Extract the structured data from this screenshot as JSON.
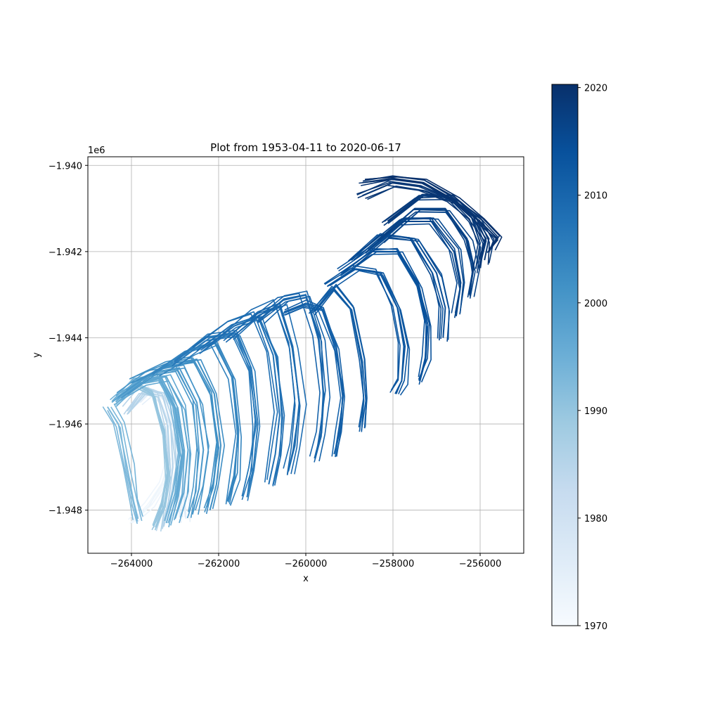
{
  "chart_data": {
    "type": "line",
    "title": "Plot from 1953-04-11 to 2020-06-17",
    "xlabel": "x",
    "ylabel": "y",
    "y_offset_label": "1e6",
    "xlim": [
      -265000,
      -255000
    ],
    "ylim": [
      -1.949,
      -1.9398
    ],
    "x_ticks": [
      -264000,
      -262000,
      -260000,
      -258000,
      -256000
    ],
    "x_tick_labels": [
      "−264000",
      "−262000",
      "−260000",
      "−258000",
      "−256000"
    ],
    "y_ticks": [
      -1.948,
      -1.946,
      -1.944,
      -1.942,
      -1.94
    ],
    "y_tick_labels": [
      "−1.948",
      "−1.946",
      "−1.944",
      "−1.942",
      "−1.940"
    ],
    "grid": true,
    "colormap": "Blues",
    "colorbar": {
      "range": [
        1970,
        2020.3
      ],
      "ticks": [
        1970,
        1980,
        1990,
        2000,
        2010,
        2020
      ],
      "tick_labels": [
        "1970",
        "1980",
        "1990",
        "2000",
        "2010",
        "2020"
      ],
      "colors": [
        "#f7fbff",
        "#deebf7",
        "#c6dbef",
        "#9ecae1",
        "#6baed6",
        "#4292c6",
        "#2171b5",
        "#08519c",
        "#08306b"
      ]
    },
    "series": [
      {
        "year": 1972,
        "x": [
          -264000,
          -263600,
          -263300,
          -263100
        ],
        "y": [
          -1.9483,
          -1.9479,
          -1.9474,
          -1.9468
        ]
      },
      {
        "year": 1975,
        "x": [
          -263800,
          -263500,
          -263200,
          -262950,
          -262800,
          -262750
        ],
        "y": [
          -1.9455,
          -1.9452,
          -1.9455,
          -1.9462,
          -1.9472,
          -1.9482
        ]
      },
      {
        "year": 1985,
        "x": [
          -264100,
          -263700,
          -263300,
          -263100,
          -263050,
          -263150,
          -263300
        ],
        "y": [
          -1.9457,
          -1.9452,
          -1.9453,
          -1.946,
          -1.947,
          -1.9478,
          -1.9484
        ]
      },
      {
        "year": 1990,
        "x": [
          -264350,
          -263900,
          -263500,
          -263250,
          -263150,
          -263250,
          -263450
        ],
        "y": [
          -1.9455,
          -1.9451,
          -1.9453,
          -1.9462,
          -1.9472,
          -1.9479,
          -1.9484
        ]
      },
      {
        "year": 1993,
        "x": [
          -264550,
          -264300,
          -264100,
          -263950,
          -263850
        ],
        "y": [
          -1.9456,
          -1.946,
          -1.947,
          -1.9478,
          -1.9482
        ]
      },
      {
        "year": 1995,
        "x": [
          -264450,
          -263900,
          -263400,
          -263050,
          -262900,
          -263000,
          -263200
        ],
        "y": [
          -1.9455,
          -1.945,
          -1.9449,
          -1.9456,
          -1.9467,
          -1.9476,
          -1.9483
        ]
      },
      {
        "year": 1997,
        "x": [
          -264300,
          -263700,
          -263200,
          -262850,
          -262700,
          -262800,
          -263000
        ],
        "y": [
          -1.9454,
          -1.945,
          -1.9449,
          -1.9456,
          -1.9466,
          -1.9476,
          -1.9482
        ]
      },
      {
        "year": 2000,
        "x": [
          -264200,
          -263500,
          -262900,
          -262500,
          -262350,
          -262450,
          -262600
        ],
        "y": [
          -1.9453,
          -1.9448,
          -1.9447,
          -1.9455,
          -1.9466,
          -1.9475,
          -1.9481
        ]
      },
      {
        "year": 2002,
        "x": [
          -263900,
          -263100,
          -262500,
          -262100,
          -261950,
          -262050,
          -262200
        ],
        "y": [
          -1.945,
          -1.9446,
          -1.9445,
          -1.9453,
          -1.9465,
          -1.9474,
          -1.948
        ]
      },
      {
        "year": 2004,
        "x": [
          -263500,
          -262700,
          -262100,
          -261700,
          -261550,
          -261650,
          -261800
        ],
        "y": [
          -1.9448,
          -1.9443,
          -1.9441,
          -1.9449,
          -1.9462,
          -1.9472,
          -1.9478
        ]
      },
      {
        "year": 2006,
        "x": [
          -263000,
          -262200,
          -261600,
          -261250,
          -261100,
          -261200,
          -261350
        ],
        "y": [
          -1.9446,
          -1.944,
          -1.9439,
          -1.9447,
          -1.946,
          -1.947,
          -1.9477
        ]
      },
      {
        "year": 2008,
        "x": [
          -262500,
          -261700,
          -261100,
          -260750,
          -260600,
          -260700,
          -260850
        ],
        "y": [
          -1.9443,
          -1.9437,
          -1.9435,
          -1.9444,
          -1.9458,
          -1.9467,
          -1.9474
        ]
      },
      {
        "year": 2009,
        "x": [
          -261800,
          -261100,
          -260600,
          -260300,
          -260150,
          -260250,
          -260400
        ],
        "y": [
          -1.944,
          -1.9434,
          -1.9432,
          -1.9442,
          -1.9455,
          -1.9465,
          -1.9471
        ]
      },
      {
        "year": 2010,
        "x": [
          -261100,
          -260500,
          -260000,
          -259700,
          -259600,
          -259650,
          -259800
        ],
        "y": [
          -1.9436,
          -1.9431,
          -1.943,
          -1.944,
          -1.9453,
          -1.9462,
          -1.9468
        ]
      },
      {
        "year": 2011,
        "x": [
          -260500,
          -260000,
          -259600,
          -259300,
          -259150,
          -259200,
          -259350
        ],
        "y": [
          -1.9434,
          -1.9432,
          -1.9433,
          -1.9442,
          -1.9453,
          -1.9461,
          -1.9467
        ]
      },
      {
        "year": 2012,
        "x": [
          -259800,
          -259300,
          -258900,
          -258650,
          -258600,
          -258650
        ],
        "y": [
          -1.9434,
          -1.9428,
          -1.9433,
          -1.9445,
          -1.9454,
          -1.9461
        ]
      },
      {
        "year": 2013,
        "x": [
          -259500,
          -258900,
          -258300,
          -257900,
          -257750,
          -257800,
          -257950
        ],
        "y": [
          -1.9428,
          -1.9424,
          -1.9425,
          -1.9433,
          -1.9442,
          -1.945,
          -1.9453
        ]
      },
      {
        "year": 2014,
        "x": [
          -259200,
          -258500,
          -257900,
          -257400,
          -257200,
          -257250,
          -257400
        ],
        "y": [
          -1.9425,
          -1.942,
          -1.942,
          -1.9428,
          -1.9437,
          -1.9445,
          -1.945
        ]
      },
      {
        "year": 2015,
        "x": [
          -258900,
          -258200,
          -257500,
          -257000,
          -256800,
          -256850
        ],
        "y": [
          -1.9422,
          -1.9416,
          -1.9417,
          -1.9425,
          -1.9433,
          -1.944
        ]
      },
      {
        "year": 2016,
        "x": [
          -258600,
          -257800,
          -257100,
          -256600,
          -256450,
          -256550
        ],
        "y": [
          -1.942,
          -1.9413,
          -1.9413,
          -1.942,
          -1.9428,
          -1.9435
        ]
      },
      {
        "year": 2017,
        "x": [
          -258300,
          -257500,
          -256800,
          -256300,
          -256150,
          -256250
        ],
        "y": [
          -1.9417,
          -1.941,
          -1.941,
          -1.9417,
          -1.9424,
          -1.943
        ]
      },
      {
        "year": 2018,
        "x": [
          -258200,
          -257400,
          -256700,
          -256200,
          -256000,
          -256100
        ],
        "y": [
          -1.9413,
          -1.9407,
          -1.9407,
          -1.9412,
          -1.9418,
          -1.9424
        ]
      },
      {
        "year": 2019,
        "x": [
          -258700,
          -258000,
          -257300,
          -256600,
          -256100,
          -255800,
          -255900
        ],
        "y": [
          -1.9407,
          -1.9404,
          -1.9405,
          -1.9408,
          -1.9412,
          -1.9417,
          -1.9422
        ]
      },
      {
        "year": 2020,
        "x": [
          -258700,
          -258000,
          -257300,
          -256600,
          -256000,
          -255600,
          -255800
        ],
        "y": [
          -1.9404,
          -1.9403,
          -1.9404,
          -1.9408,
          -1.9413,
          -1.9417,
          -1.942
        ]
      }
    ]
  }
}
